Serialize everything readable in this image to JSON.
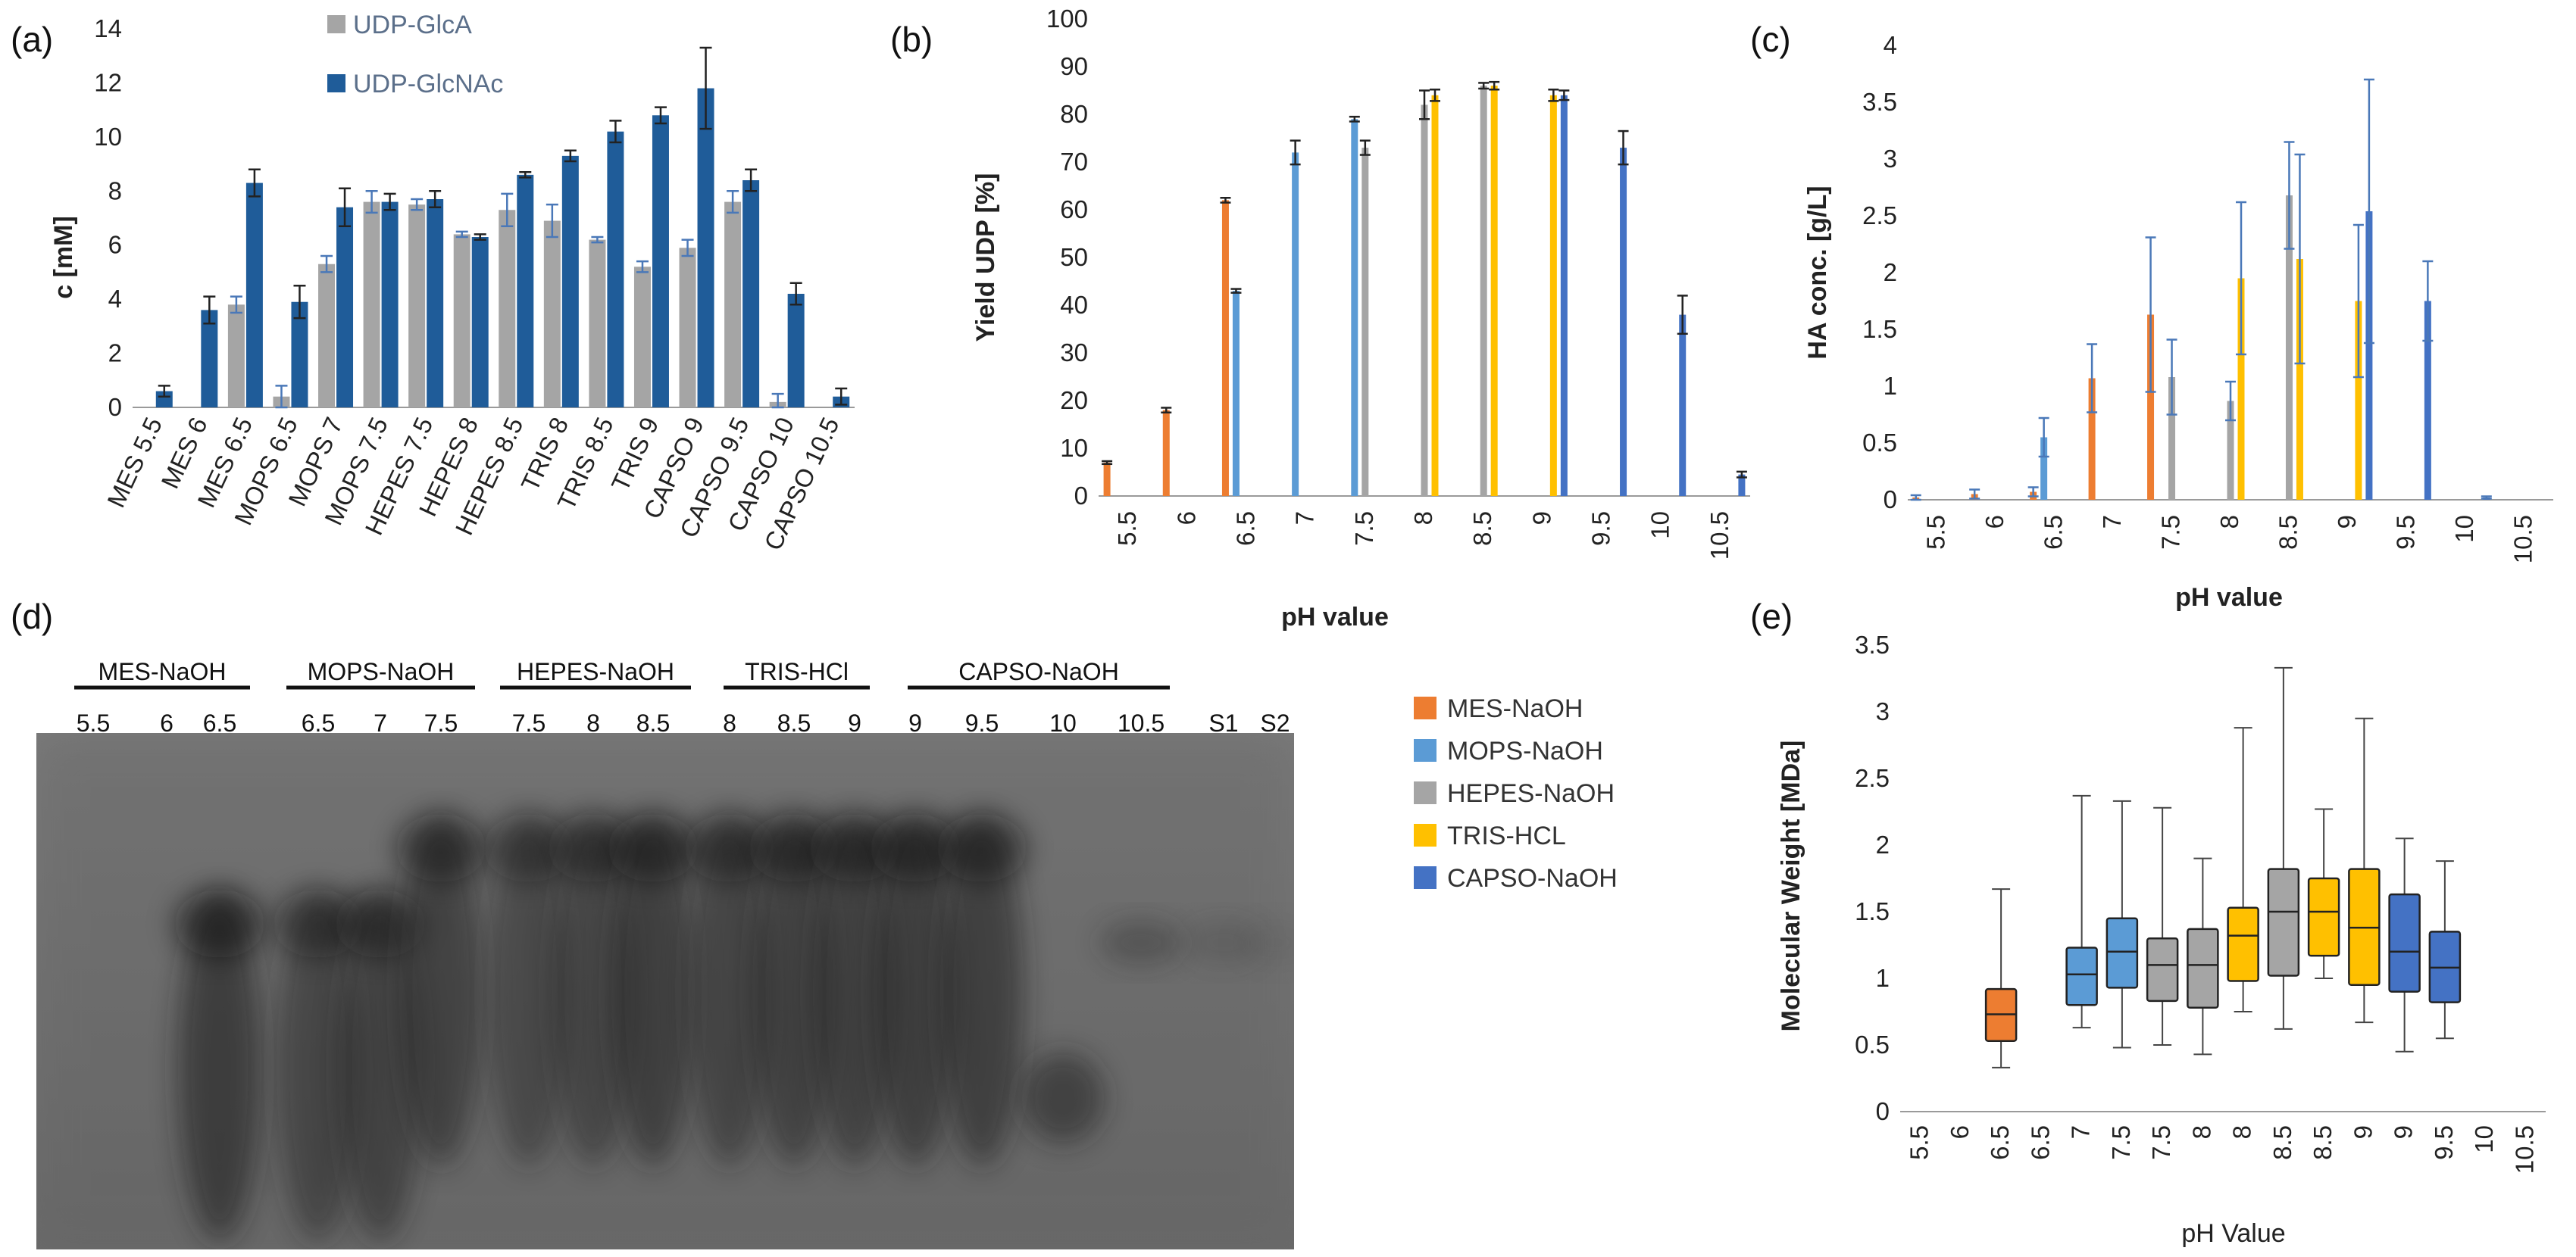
{
  "figure": {
    "panel_labels": [
      "(a)",
      "(b)",
      "(c)",
      "(d)",
      "(e)"
    ]
  },
  "chart_data": [
    {
      "panel": "(a)",
      "type": "bar",
      "title": "",
      "xlabel": "",
      "ylabel": "c [mM]",
      "ylim": [
        0,
        14
      ],
      "yticks": [
        0,
        2,
        4,
        6,
        8,
        10,
        12,
        14
      ],
      "categories": [
        "MES 5.5",
        "MES 6",
        "MES 6.5",
        "MOPS 6.5",
        "MOPS 7",
        "MOPS 7.5",
        "HEPES 7.5",
        "HEPES 8",
        "HEPES 8.5",
        "TRIS 8",
        "TRIS 8.5",
        "TRIS 9",
        "CAPSO 9",
        "CAPSO 9.5",
        "CAPSO 10",
        "CAPSO 10.5"
      ],
      "series": [
        {
          "name": "UDP-GlcA",
          "color": "#a5a5a5",
          "values": [
            0,
            0,
            3.8,
            0.4,
            5.3,
            7.6,
            7.5,
            6.4,
            7.3,
            6.9,
            6.2,
            5.2,
            5.9,
            7.6,
            0.2,
            0
          ],
          "errors": [
            0,
            0,
            0.3,
            0.4,
            0.3,
            0.4,
            0.2,
            0.1,
            0.6,
            0.6,
            0.1,
            0.2,
            0.3,
            0.4,
            0.3,
            0
          ]
        },
        {
          "name": "UDP-GlcNAc",
          "color": "#1f5c99",
          "values": [
            0.6,
            3.6,
            8.3,
            3.9,
            7.4,
            7.6,
            7.7,
            6.3,
            8.6,
            9.3,
            10.2,
            10.8,
            11.8,
            8.4,
            4.2,
            0.4
          ],
          "errors": [
            0.2,
            0.5,
            0.5,
            0.6,
            0.7,
            0.3,
            0.3,
            0.1,
            0.1,
            0.2,
            0.4,
            0.3,
            1.5,
            0.4,
            0.4,
            0.3
          ]
        }
      ],
      "legend": "top-center"
    },
    {
      "panel": "(b)",
      "type": "bar",
      "title": "",
      "xlabel": "pH value",
      "ylabel": "Yield UDP [%]",
      "ylim": [
        0,
        100
      ],
      "yticks": [
        0,
        10,
        20,
        30,
        40,
        50,
        60,
        70,
        80,
        90,
        100
      ],
      "categories": [
        "5.5",
        "6",
        "6.5",
        "7",
        "7.5",
        "8",
        "8.5",
        "9",
        "9.5",
        "10",
        "10.5"
      ],
      "series": [
        {
          "name": "MES-NaOH",
          "color": "#ed7d31",
          "values": [
            7,
            18,
            62,
            null,
            null,
            null,
            null,
            null,
            null,
            null,
            null
          ],
          "errors": [
            0.3,
            0.5,
            0.5,
            0,
            0,
            0,
            0,
            0,
            0,
            0,
            0
          ]
        },
        {
          "name": "MOPS-NaOH",
          "color": "#5b9bd5",
          "values": [
            null,
            null,
            43,
            72,
            79,
            null,
            null,
            null,
            null,
            null,
            null
          ],
          "errors": [
            0,
            0,
            0.4,
            2.5,
            0.5,
            0,
            0,
            0,
            0,
            0,
            0
          ]
        },
        {
          "name": "HEPES-NaOH",
          "color": "#a5a5a5",
          "values": [
            null,
            null,
            null,
            null,
            73,
            82,
            86,
            null,
            null,
            null,
            null
          ],
          "errors": [
            0,
            0,
            0,
            0,
            1.5,
            3,
            0.6,
            0,
            0,
            0,
            0
          ]
        },
        {
          "name": "TRIS-HCL",
          "color": "#ffc000",
          "values": [
            null,
            null,
            null,
            null,
            null,
            84,
            86,
            84,
            null,
            null,
            null
          ],
          "errors": [
            0,
            0,
            0,
            0,
            0,
            1.2,
            0.8,
            1.2,
            0,
            0,
            0
          ]
        },
        {
          "name": "CAPSO-NaOH",
          "color": "#4472c4",
          "values": [
            null,
            null,
            null,
            null,
            null,
            null,
            null,
            84,
            73,
            38,
            4.5
          ],
          "errors": [
            0,
            0,
            0,
            0,
            0,
            0,
            0,
            1.0,
            3.5,
            4,
            0.6
          ]
        }
      ]
    },
    {
      "panel": "(c)",
      "type": "bar",
      "title": "",
      "xlabel": "pH value",
      "ylabel": "HA conc. [g/L]",
      "ylim": [
        0,
        4
      ],
      "yticks": [
        0,
        0.5,
        1,
        1.5,
        2,
        2.5,
        3,
        3.5,
        4
      ],
      "categories": [
        "5.5",
        "6",
        "6.5",
        "7",
        "7.5",
        "8",
        "8.5",
        "9",
        "9.5",
        "10",
        "10.5"
      ],
      "series": [
        {
          "name": "MES-NaOH",
          "color": "#ed7d31",
          "values": [
            0.02,
            0.05,
            0.07,
            1.07,
            1.63,
            null,
            null,
            null,
            null,
            null,
            null
          ],
          "errors": [
            0.02,
            0.04,
            0.04,
            0.3,
            0.68,
            0,
            0,
            0,
            0,
            0,
            0
          ]
        },
        {
          "name": "MOPS-NaOH",
          "color": "#5b9bd5",
          "values": [
            null,
            null,
            0.55,
            null,
            null,
            null,
            null,
            null,
            null,
            null,
            null
          ],
          "errors": [
            0,
            0,
            0.17,
            0,
            0,
            0,
            0,
            0,
            0,
            0,
            0
          ]
        },
        {
          "name": "HEPES-NaOH",
          "color": "#a5a5a5",
          "values": [
            null,
            null,
            null,
            null,
            1.08,
            0.87,
            2.68,
            null,
            null,
            null,
            null
          ],
          "errors": [
            0,
            0,
            0,
            0,
            0.33,
            0.17,
            0.47,
            0,
            0,
            0,
            0
          ]
        },
        {
          "name": "TRIS-HCL",
          "color": "#ffc000",
          "values": [
            null,
            null,
            null,
            null,
            null,
            1.95,
            2.12,
            1.75,
            null,
            null,
            null
          ],
          "errors": [
            0,
            0,
            0,
            0,
            0,
            0.67,
            0.92,
            0.67,
            0,
            0,
            0
          ]
        },
        {
          "name": "CAPSO-NaOH",
          "color": "#4472c4",
          "values": [
            null,
            null,
            null,
            null,
            null,
            null,
            null,
            2.54,
            1.75,
            0.02,
            null
          ],
          "errors": [
            0,
            0,
            0,
            0,
            0,
            0,
            0,
            1.16,
            0.35,
            0.01,
            0
          ]
        }
      ]
    },
    {
      "panel": "(e)",
      "type": "box",
      "title": "",
      "xlabel": "pH Value",
      "ylabel": "Molecular Weight [MDa]",
      "ylim": [
        0,
        3.5
      ],
      "yticks": [
        0,
        0.5,
        1,
        1.5,
        2,
        2.5,
        3,
        3.5
      ],
      "tick_labels": [
        "5.5",
        "6",
        "6.5",
        "6.5",
        "7",
        "7.5",
        "7.5",
        "8",
        "8",
        "8.5",
        "8.5",
        "9",
        "9",
        "9.5",
        "10",
        "10.5"
      ],
      "boxes": [
        {
          "slot": 2,
          "buffer": "MES-NaOH",
          "color": "#ed7d31",
          "min": 0.33,
          "q1": 0.53,
          "median": 0.73,
          "q3": 0.92,
          "max": 1.67
        },
        {
          "slot": 4,
          "buffer": "MOPS-NaOH",
          "color": "#5b9bd5",
          "min": 0.63,
          "q1": 0.8,
          "median": 1.03,
          "q3": 1.23,
          "max": 2.37
        },
        {
          "slot": 5,
          "buffer": "MOPS-NaOH",
          "color": "#5b9bd5",
          "min": 0.48,
          "q1": 0.93,
          "median": 1.2,
          "q3": 1.45,
          "max": 2.33
        },
        {
          "slot": 6,
          "buffer": "HEPES-NaOH",
          "color": "#a5a5a5",
          "min": 0.5,
          "q1": 0.83,
          "median": 1.1,
          "q3": 1.3,
          "max": 2.28
        },
        {
          "slot": 7,
          "buffer": "HEPES-NaOH",
          "color": "#a5a5a5",
          "min": 0.43,
          "q1": 0.78,
          "median": 1.1,
          "q3": 1.37,
          "max": 1.9
        },
        {
          "slot": 8,
          "buffer": "TRIS-HCL",
          "color": "#ffc000",
          "min": 0.75,
          "q1": 0.98,
          "median": 1.32,
          "q3": 1.53,
          "max": 2.88
        },
        {
          "slot": 9,
          "buffer": "HEPES-NaOH",
          "color": "#a5a5a5",
          "min": 0.62,
          "q1": 1.02,
          "median": 1.5,
          "q3": 1.82,
          "max": 3.33
        },
        {
          "slot": 10,
          "buffer": "TRIS-HCL",
          "color": "#ffc000",
          "min": 1.0,
          "q1": 1.17,
          "median": 1.5,
          "q3": 1.75,
          "max": 2.27
        },
        {
          "slot": 11,
          "buffer": "TRIS-HCL",
          "color": "#ffc000",
          "min": 0.67,
          "q1": 0.95,
          "median": 1.38,
          "q3": 1.82,
          "max": 2.95
        },
        {
          "slot": 12,
          "buffer": "CAPSO-NaOH",
          "color": "#4472c4",
          "min": 0.45,
          "q1": 0.9,
          "median": 1.2,
          "q3": 1.63,
          "max": 2.05
        },
        {
          "slot": 13,
          "buffer": "CAPSO-NaOH",
          "color": "#4472c4",
          "min": 0.55,
          "q1": 0.82,
          "median": 1.08,
          "q3": 1.35,
          "max": 1.88
        }
      ]
    }
  ],
  "legend_be": [
    {
      "name": "MES-NaOH",
      "color": "#ed7d31"
    },
    {
      "name": "MOPS-NaOH",
      "color": "#5b9bd5"
    },
    {
      "name": "HEPES-NaOH",
      "color": "#a5a5a5"
    },
    {
      "name": "TRIS-HCL",
      "color": "#ffc000"
    },
    {
      "name": "CAPSO-NaOH",
      "color": "#4472c4"
    }
  ],
  "gel": {
    "groups": [
      {
        "name": "MES-NaOH",
        "lanes": [
          "5.5",
          "6",
          "6.5"
        ]
      },
      {
        "name": "MOPS-NaOH",
        "lanes": [
          "6.5",
          "7",
          "7.5"
        ]
      },
      {
        "name": "HEPES-NaOH",
        "lanes": [
          "7.5",
          "8",
          "8.5"
        ]
      },
      {
        "name": "TRIS-HCl",
        "lanes": [
          "8",
          "8.5",
          "9"
        ]
      },
      {
        "name": "CAPSO-NaOH",
        "lanes": [
          "9",
          "9.5",
          "10",
          "10.5"
        ]
      }
    ],
    "standards": [
      "S1",
      "S2"
    ],
    "lane_intensity": [
      0,
      0,
      0.95,
      0.75,
      0.8,
      0.85,
      0.7,
      0.75,
      0.9,
      0.8,
      0.85,
      0.85,
      0.9,
      0.9,
      0.85,
      0.5,
      0.25,
      0.1
    ]
  }
}
